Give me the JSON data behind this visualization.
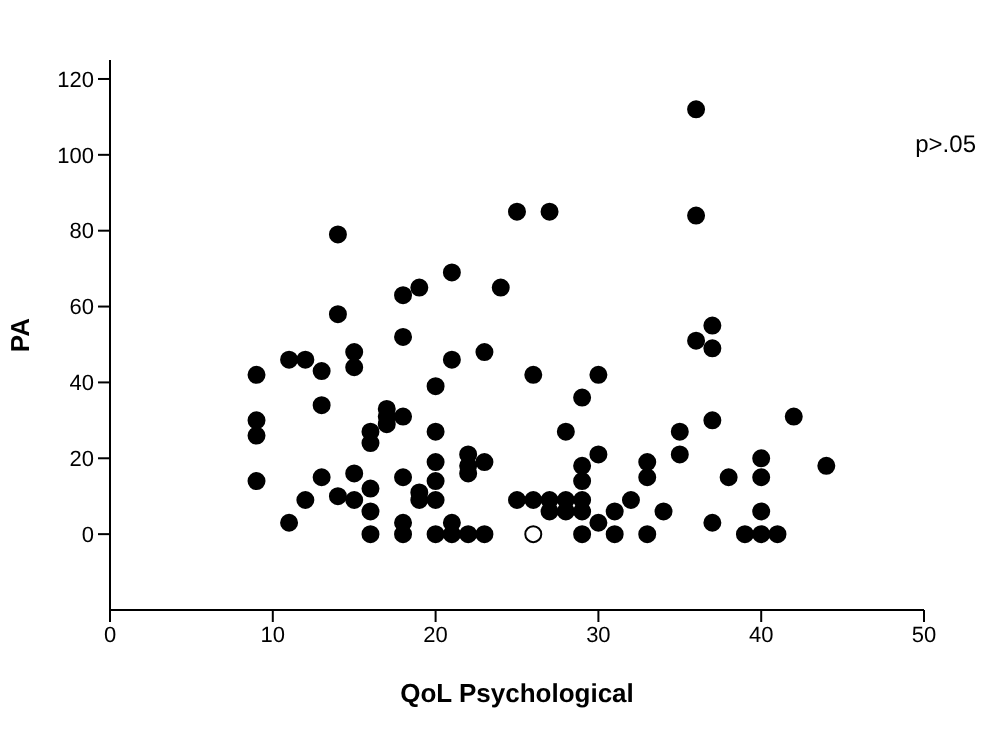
{
  "chart_data": {
    "type": "scatter",
    "xlabel": "QoL Psychological",
    "ylabel": "PA",
    "annotations": [
      "p>.05"
    ],
    "xlim": [
      0,
      50
    ],
    "xticks": [
      0,
      10,
      20,
      30,
      40,
      50
    ],
    "ylim": [
      -20,
      125
    ],
    "yticks": [
      0,
      20,
      40,
      60,
      80,
      100,
      120
    ],
    "marker": "circle",
    "series": [
      {
        "color": "#000000",
        "x": [
          9,
          9,
          9,
          9,
          11,
          11,
          12,
          12,
          13,
          13,
          13,
          14,
          14,
          14,
          15,
          15,
          15,
          15,
          16,
          16,
          16,
          16,
          16,
          17,
          17,
          17,
          18,
          18,
          18,
          18,
          18,
          18,
          19,
          19,
          19,
          20,
          20,
          20,
          20,
          20,
          20,
          21,
          21,
          21,
          21,
          22,
          22,
          22,
          22,
          23,
          23,
          23,
          24,
          25,
          25,
          26,
          26,
          27,
          27,
          27,
          28,
          28,
          28,
          29,
          29,
          29,
          29,
          29,
          29,
          30,
          30,
          30,
          31,
          31,
          32,
          33,
          33,
          33,
          34,
          35,
          35,
          36,
          36,
          36,
          37,
          37,
          37,
          37,
          38,
          39,
          40,
          40,
          40,
          40,
          41,
          42,
          44
        ],
        "values": [
          42,
          30,
          26,
          14,
          3,
          46,
          46,
          9,
          43,
          34,
          15,
          79,
          58,
          10,
          48,
          44,
          16,
          9,
          27,
          24,
          12,
          6,
          0,
          33,
          31,
          29,
          63,
          52,
          31,
          15,
          3,
          0,
          65,
          11,
          9,
          39,
          27,
          19,
          14,
          9,
          0,
          69,
          46,
          3,
          0,
          21,
          18,
          16,
          0,
          48,
          19,
          0,
          65,
          85,
          9,
          42,
          9,
          85,
          9,
          6,
          27,
          9,
          6,
          36,
          18,
          14,
          9,
          6,
          0,
          42,
          21,
          3,
          6,
          0,
          9,
          19,
          15,
          0,
          6,
          27,
          21,
          112,
          84,
          51,
          55,
          49,
          30,
          3,
          15,
          0,
          20,
          15,
          6,
          0,
          0,
          31,
          18
        ]
      },
      {
        "color": "#ffffff",
        "x": [
          26
        ],
        "values": [
          0
        ]
      }
    ]
  }
}
